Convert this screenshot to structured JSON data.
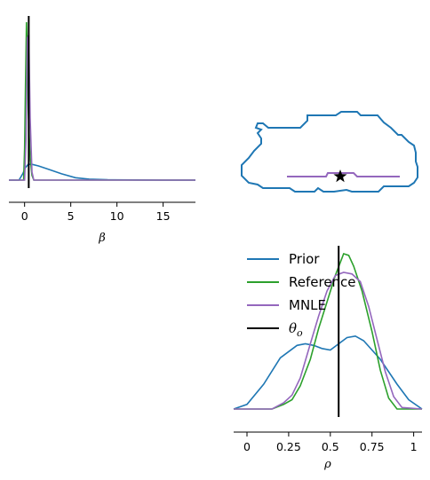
{
  "chart_data": [
    {
      "panel": "beta-marginal",
      "type": "line",
      "xlabel": "β",
      "xticks": [
        "0",
        "5",
        "10",
        "15"
      ],
      "xtick_values": [
        0,
        5,
        10,
        15
      ],
      "xlim": [
        -1.7,
        18.5
      ],
      "ylim": [
        0,
        1
      ],
      "observed_value": 0.45,
      "series": [
        {
          "name": "Prior",
          "color": "#1f77b4",
          "x": [
            -1.7,
            -0.6,
            -0.2,
            0.1,
            0.4,
            0.8,
            1.5,
            2.5,
            4,
            5.5,
            7,
            9,
            12,
            15,
            18.5
          ],
          "y": [
            0.0,
            0.0,
            0.04,
            0.08,
            0.1,
            0.1,
            0.09,
            0.07,
            0.04,
            0.015,
            0.006,
            0.002,
            0.001,
            0.0,
            0.0
          ]
        },
        {
          "name": "Reference",
          "color": "#2ca02c",
          "x": [
            -1.7,
            -0.1,
            0.0,
            0.1,
            0.2,
            0.3,
            0.4,
            0.6,
            0.8,
            1.0,
            18.5
          ],
          "y": [
            0.0,
            0.0,
            0.2,
            0.6,
            1.0,
            0.8,
            0.45,
            0.15,
            0.03,
            0.0,
            0.0
          ]
        },
        {
          "name": "MNLE",
          "color": "#9467bd",
          "x": [
            -1.7,
            0.0,
            0.15,
            0.3,
            0.45,
            0.6,
            0.8,
            1.0,
            18.5
          ],
          "y": [
            0.0,
            0.0,
            0.25,
            0.9,
            0.92,
            0.4,
            0.05,
            0.0,
            0.0
          ]
        }
      ]
    },
    {
      "panel": "joint-contour",
      "type": "scatter",
      "observed_marker": "star",
      "series": [
        {
          "name": "Prior",
          "color": "#1f77b4",
          "shape": "contour"
        },
        {
          "name": "MNLE",
          "color": "#9467bd",
          "shape": "contour"
        }
      ]
    },
    {
      "panel": "rho-marginal",
      "type": "line",
      "xlabel": "ρ",
      "xticks": [
        "0",
        "0.25",
        "0.5",
        "0.75",
        "1"
      ],
      "xtick_values": [
        0,
        0.25,
        0.5,
        0.75,
        1
      ],
      "xlim": [
        -0.08,
        1.05
      ],
      "ylim": [
        0,
        1
      ],
      "observed_value": 0.55,
      "series": [
        {
          "name": "Prior",
          "color": "#1f77b4",
          "x": [
            -0.08,
            0.0,
            0.1,
            0.2,
            0.3,
            0.35,
            0.4,
            0.45,
            0.5,
            0.55,
            0.6,
            0.65,
            0.7,
            0.8,
            0.9,
            0.97,
            1.05
          ],
          "y": [
            0.0,
            0.03,
            0.16,
            0.33,
            0.41,
            0.42,
            0.41,
            0.39,
            0.38,
            0.42,
            0.46,
            0.47,
            0.44,
            0.32,
            0.16,
            0.06,
            0.0
          ]
        },
        {
          "name": "Reference",
          "color": "#2ca02c",
          "x": [
            -0.08,
            0.15,
            0.22,
            0.27,
            0.32,
            0.38,
            0.43,
            0.48,
            0.53,
            0.58,
            0.61,
            0.64,
            0.69,
            0.75,
            0.8,
            0.85,
            0.9,
            1.05
          ],
          "y": [
            0.0,
            0.0,
            0.03,
            0.06,
            0.15,
            0.32,
            0.52,
            0.69,
            0.86,
            1.0,
            0.99,
            0.92,
            0.76,
            0.5,
            0.25,
            0.07,
            0.0,
            0.0
          ]
        },
        {
          "name": "MNLE",
          "color": "#9467bd",
          "x": [
            -0.08,
            0.15,
            0.22,
            0.27,
            0.32,
            0.38,
            0.43,
            0.48,
            0.53,
            0.58,
            0.63,
            0.68,
            0.73,
            0.78,
            0.83,
            0.88,
            0.93,
            1.05
          ],
          "y": [
            0.0,
            0.0,
            0.04,
            0.09,
            0.2,
            0.42,
            0.6,
            0.76,
            0.86,
            0.88,
            0.87,
            0.82,
            0.66,
            0.45,
            0.24,
            0.08,
            0.01,
            0.0
          ]
        }
      ]
    }
  ],
  "legend": {
    "entries": [
      {
        "label": "Prior",
        "color": "#1f77b4"
      },
      {
        "label": "Reference",
        "color": "#2ca02c"
      },
      {
        "label": "MNLE",
        "color": "#9467bd"
      },
      {
        "label": "θ",
        "subscript": "o",
        "color": "#000000"
      }
    ]
  }
}
